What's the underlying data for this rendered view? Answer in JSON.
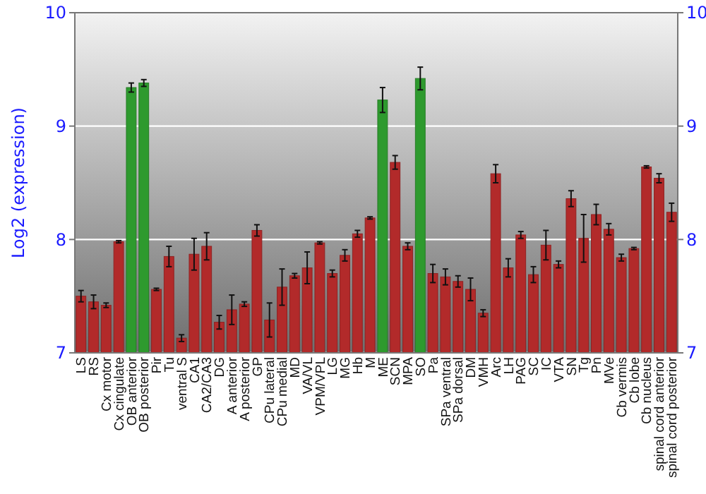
{
  "chart_data": {
    "type": "bar",
    "ylabel": "Log2 (expression)",
    "categories": [
      "LS",
      "RS",
      "Cx motor",
      "Cx cingulate",
      "OB anterior",
      "OB posterior",
      "Pir",
      "Tu",
      "ventral S",
      "CA1",
      "CA2/CA3",
      "DG",
      "A anterior",
      "A posterior",
      "GP",
      "CPu lateral",
      "CPu medial",
      "MD",
      "VA/VL",
      "VPM/VPL",
      "LG",
      "MG",
      "Hb",
      "M",
      "ME",
      "SCN",
      "MPA",
      "SO",
      "Pa",
      "SPa ventral",
      "SPa dorsal",
      "DM",
      "VMH",
      "Arc",
      "LH",
      "PAG",
      "SC",
      "IC",
      "VTA",
      "SN",
      "Tg",
      "Pn",
      "MVe",
      "Cb vermis",
      "Cb lobe",
      "Cb nucleus",
      "spinal cord anterior",
      "spinal cord posterior"
    ],
    "values": [
      7.5,
      7.45,
      7.42,
      7.98,
      9.34,
      9.38,
      7.56,
      7.85,
      7.13,
      7.87,
      7.94,
      7.27,
      7.38,
      7.43,
      8.08,
      7.29,
      7.58,
      7.68,
      7.75,
      7.97,
      7.7,
      7.86,
      8.05,
      8.19,
      9.23,
      8.68,
      7.94,
      9.42,
      7.7,
      7.67,
      7.63,
      7.56,
      7.35,
      8.58,
      7.75,
      8.04,
      7.69,
      7.95,
      7.78,
      8.36,
      8.01,
      8.22,
      8.09,
      7.84,
      7.92,
      8.64,
      8.54,
      8.24
    ],
    "errors": [
      0.05,
      0.06,
      0.02,
      0.01,
      0.04,
      0.03,
      0.01,
      0.09,
      0.03,
      0.14,
      0.12,
      0.06,
      0.13,
      0.02,
      0.05,
      0.15,
      0.16,
      0.02,
      0.14,
      0.01,
      0.03,
      0.05,
      0.03,
      0.01,
      0.11,
      0.06,
      0.03,
      0.1,
      0.08,
      0.07,
      0.05,
      0.1,
      0.03,
      0.08,
      0.08,
      0.03,
      0.07,
      0.13,
      0.03,
      0.07,
      0.21,
      0.09,
      0.05,
      0.03,
      0.01,
      0.01,
      0.04,
      0.08
    ],
    "colors": [
      "#b22a2a",
      "#b22a2a",
      "#b22a2a",
      "#b22a2a",
      "#2e9a2e",
      "#2e9a2e",
      "#b22a2a",
      "#b22a2a",
      "#b22a2a",
      "#b22a2a",
      "#b22a2a",
      "#b22a2a",
      "#b22a2a",
      "#b22a2a",
      "#b22a2a",
      "#b22a2a",
      "#b22a2a",
      "#b22a2a",
      "#b22a2a",
      "#b22a2a",
      "#b22a2a",
      "#b22a2a",
      "#b22a2a",
      "#b22a2a",
      "#2e9a2e",
      "#b22a2a",
      "#b22a2a",
      "#2e9a2e",
      "#b22a2a",
      "#b22a2a",
      "#b22a2a",
      "#b22a2a",
      "#b22a2a",
      "#b22a2a",
      "#b22a2a",
      "#b22a2a",
      "#b22a2a",
      "#b22a2a",
      "#b22a2a",
      "#b22a2a",
      "#b22a2a",
      "#b22a2a",
      "#b22a2a",
      "#b22a2a",
      "#b22a2a",
      "#b22a2a",
      "#b22a2a",
      "#b22a2a"
    ],
    "ylim": [
      7,
      10
    ],
    "yticks": [
      7,
      8,
      9,
      10
    ],
    "y2lim": [
      7,
      10
    ],
    "y2ticks": [
      7,
      8,
      9,
      10
    ],
    "grid": "y"
  }
}
